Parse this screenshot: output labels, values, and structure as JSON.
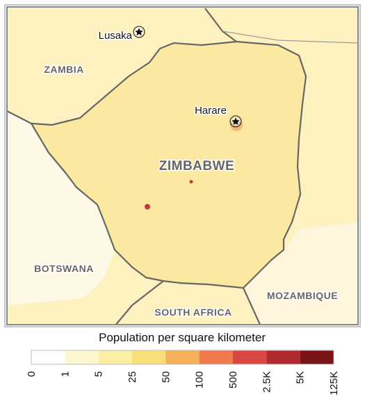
{
  "map": {
    "places": [
      {
        "name": "Lusaka",
        "kind": "city"
      },
      {
        "name": "Harare",
        "kind": "city"
      },
      {
        "name": "ZAMBIA",
        "kind": "country"
      },
      {
        "name": "ZIMBABWE",
        "kind": "country"
      },
      {
        "name": "BOTSWANA",
        "kind": "country"
      },
      {
        "name": "SOUTH AFRICA",
        "kind": "country"
      },
      {
        "name": "MOZAMBIQUE",
        "kind": "country"
      }
    ]
  },
  "legend": {
    "title": "Population per square kilometer",
    "ticks": [
      "0",
      "1",
      "5",
      "25",
      "50",
      "100",
      "500",
      "2.5K",
      "5K",
      "125K"
    ],
    "colors": [
      "#ffffff",
      "#fdf7cf",
      "#fbefa6",
      "#f8df78",
      "#f5b059",
      "#ee7a4e",
      "#d94843",
      "#b0292b",
      "#7a1417"
    ]
  }
}
